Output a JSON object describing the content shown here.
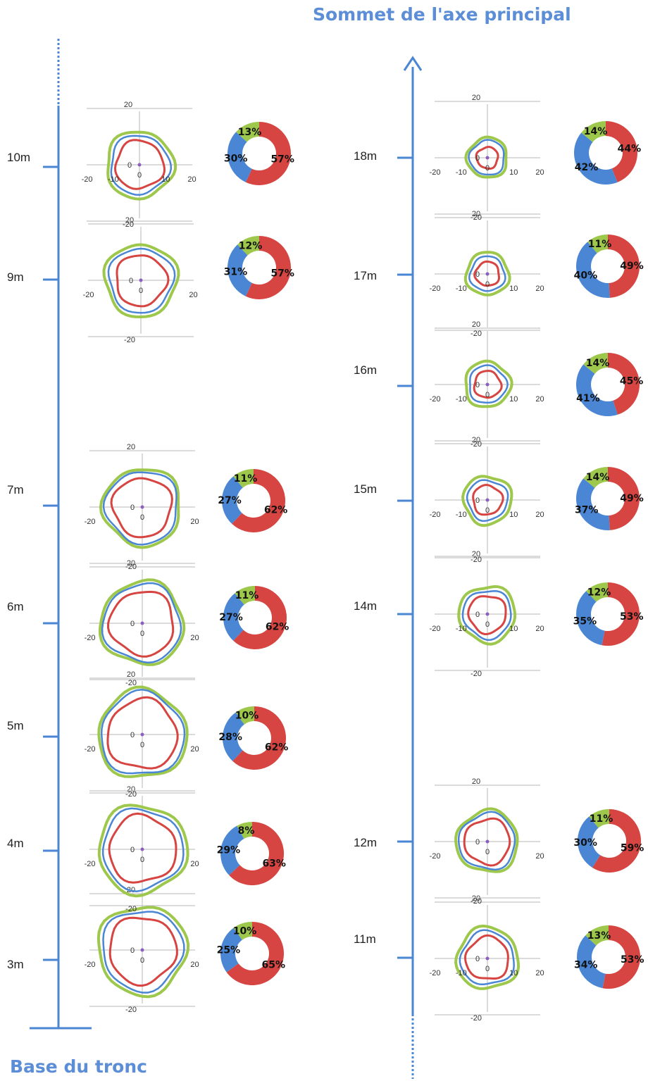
{
  "titles": {
    "top": "Sommet de l'axe principal",
    "bottom": "Base du tronc"
  },
  "colors": {
    "axis": "#4a86d4",
    "title": "#5b8ed6",
    "red": "#d64541",
    "blue": "#4a86d4",
    "green": "#9dc84b",
    "center_point": "#8c5fbf",
    "grid": "#b7b7b7"
  },
  "chart_data": [
    {
      "type": "radar-polar",
      "description_source": "trunk contour cross-sections",
      "axis_ticks": [
        "-20",
        "-10",
        "0",
        "10",
        "20"
      ],
      "levels": [
        {
          "label": "3m",
          "radii": {
            "red": 12.5,
            "blue": 15,
            "green": 16.5
          },
          "shares": [
            65,
            25,
            10
          ],
          "x_ticks": [
            "-20",
            "0",
            "20"
          ],
          "y_ticks": [
            "20",
            "0",
            "-20"
          ]
        },
        {
          "label": "4m",
          "radii": {
            "red": 12.5,
            "blue": 15,
            "green": 16.5
          },
          "shares": [
            63,
            29,
            8
          ],
          "x_ticks": [
            "-20",
            "0",
            "20"
          ],
          "y_ticks": [
            "20",
            "0",
            "-20"
          ]
        },
        {
          "label": "5m",
          "radii": {
            "red": 13,
            "blue": 15.5,
            "green": 16.5
          },
          "shares": [
            62,
            28,
            10
          ],
          "x_ticks": [
            "-20",
            "0",
            "20"
          ],
          "y_ticks": [
            "20",
            "0",
            "-20"
          ]
        },
        {
          "label": "6m",
          "radii": {
            "red": 12,
            "blue": 14.5,
            "green": 15.5
          },
          "shares": [
            62,
            27,
            11
          ],
          "x_ticks": [
            "-20",
            "0",
            "20"
          ],
          "y_ticks": [
            "20",
            "0",
            "-20"
          ]
        },
        {
          "label": "7m",
          "radii": {
            "red": 11,
            "blue": 13.5,
            "green": 14.5
          },
          "shares": [
            62,
            27,
            11
          ],
          "x_ticks": [
            "-20",
            "0",
            "20"
          ],
          "y_ticks": [
            "20",
            "0",
            "-20"
          ]
        },
        {
          "label": "9m",
          "radii": {
            "red": 9.5,
            "blue": 12,
            "green": 13.5
          },
          "shares": [
            57,
            31,
            12
          ],
          "x_ticks": [
            "-20",
            "0",
            "20"
          ],
          "y_ticks": [
            "20",
            "0",
            "-20"
          ]
        },
        {
          "label": "10m",
          "radii": {
            "red": 9,
            "blue": 11,
            "green": 12.5
          },
          "shares": [
            57,
            30,
            13
          ],
          "x_ticks": [
            "-20",
            "-10",
            "0",
            "10",
            "20"
          ],
          "y_ticks": [
            "20",
            "0",
            "-20"
          ]
        },
        {
          "label": "11m",
          "radii": {
            "red": 8,
            "blue": 10,
            "green": 11.5
          },
          "shares": [
            53,
            34,
            13
          ],
          "x_ticks": [
            "-20",
            "-10",
            "0",
            "10",
            "20"
          ],
          "y_ticks": [
            "20",
            "0",
            "-20"
          ]
        },
        {
          "label": "12m",
          "radii": {
            "red": 8.5,
            "blue": 10.5,
            "green": 11.5
          },
          "shares": [
            59,
            30,
            11
          ],
          "x_ticks": [
            "-20",
            "0",
            "20"
          ],
          "y_ticks": [
            "20",
            "0",
            "-20"
          ]
        },
        {
          "label": "14m",
          "radii": {
            "red": 7,
            "blue": 9,
            "green": 10.5
          },
          "shares": [
            53,
            35,
            12
          ],
          "x_ticks": [
            "-20",
            "-10",
            "0",
            "10",
            "20"
          ],
          "y_ticks": [
            "20",
            "0",
            "-20"
          ]
        },
        {
          "label": "15m",
          "radii": {
            "red": 5.5,
            "blue": 7.5,
            "green": 9
          },
          "shares": [
            49,
            37,
            14
          ],
          "x_ticks": [
            "-20",
            "-10",
            "0",
            "10",
            "20"
          ],
          "y_ticks": [
            "20",
            "0",
            "-20"
          ]
        },
        {
          "label": "16m",
          "radii": {
            "red": 5,
            "blue": 7,
            "green": 8.5
          },
          "shares": [
            45,
            41,
            14
          ],
          "x_ticks": [
            "-20",
            "-10",
            "0",
            "10",
            "20"
          ],
          "y_ticks": [
            "20",
            "0",
            "-20"
          ]
        },
        {
          "label": "17m",
          "radii": {
            "red": 4.5,
            "blue": 6.5,
            "green": 8
          },
          "shares": [
            49,
            40,
            11
          ],
          "x_ticks": [
            "-20",
            "-10",
            "0",
            "10",
            "20"
          ],
          "y_ticks": [
            "20",
            "0",
            "-20"
          ]
        },
        {
          "label": "18m",
          "radii": {
            "red": 4,
            "blue": 6.5,
            "green": 7.5
          },
          "shares": [
            44,
            42,
            14
          ],
          "x_ticks": [
            "-20",
            "-10",
            "0",
            "10",
            "20"
          ],
          "y_ticks": [
            "20",
            "0",
            "-20"
          ]
        }
      ]
    }
  ]
}
